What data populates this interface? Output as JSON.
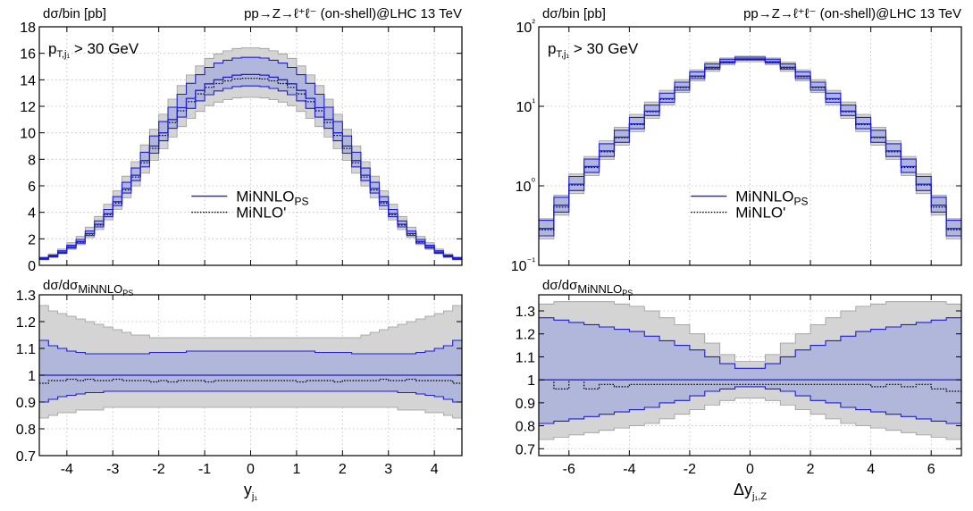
{
  "chart_data": [
    {
      "id": "left",
      "type": "step-histogram",
      "title": "pp→Z→ℓ⁺ℓ⁻ (on-shell)@LHC 13 TeV",
      "ylabel": "dσ/bin [pb]",
      "cut_label": "p_{T,j₁} > 30 GeV",
      "xlabel": "y_{j₁}",
      "xlim": [
        -4.6,
        4.6
      ],
      "ylim": [
        0,
        18
      ],
      "yscale": "linear",
      "grid": true,
      "legend_placement": "center-right",
      "xticks": [
        -4,
        -3,
        -2,
        -1,
        0,
        1,
        2,
        3,
        4
      ],
      "xtick_labels": [
        "-4",
        "-3",
        "-2",
        "-1",
        "0",
        "1",
        "2",
        "3",
        "4"
      ],
      "yticks": [
        0,
        2,
        4,
        6,
        8,
        10,
        12,
        14,
        16,
        18
      ],
      "ytick_labels": [
        "0",
        "2",
        "4",
        "6",
        "8",
        "10",
        "12",
        "14",
        "16",
        "18"
      ],
      "bin_edges": [
        -4.6,
        -4.4,
        -4.2,
        -4.0,
        -3.8,
        -3.6,
        -3.4,
        -3.2,
        -3.0,
        -2.8,
        -2.6,
        -2.4,
        -2.2,
        -2.0,
        -1.8,
        -1.6,
        -1.4,
        -1.2,
        -1.0,
        -0.8,
        -0.6,
        -0.4,
        -0.2,
        0.0,
        0.2,
        0.4,
        0.6,
        0.8,
        1.0,
        1.2,
        1.4,
        1.6,
        1.8,
        2.0,
        2.2,
        2.4,
        2.6,
        2.8,
        3.0,
        3.2,
        3.4,
        3.6,
        3.8,
        4.0,
        4.2,
        4.4,
        4.6
      ],
      "series": [
        {
          "name": "MiNNLO_PS",
          "color": "#1f1fd0",
          "style": "solid",
          "values": [
            0.5,
            0.7,
            1.0,
            1.4,
            1.8,
            2.4,
            3.1,
            3.9,
            4.8,
            5.8,
            6.8,
            7.9,
            9.0,
            10.0,
            11.0,
            11.9,
            12.6,
            13.2,
            13.7,
            14.0,
            14.2,
            14.35,
            14.4,
            14.4,
            14.35,
            14.2,
            14.0,
            13.7,
            13.2,
            12.6,
            11.9,
            11.0,
            10.0,
            9.0,
            7.9,
            6.8,
            5.8,
            4.8,
            3.9,
            3.1,
            2.4,
            1.8,
            1.4,
            1.0,
            0.7,
            0.5
          ]
        },
        {
          "name": "MiNLO'",
          "color": "#000000",
          "style": "dotted",
          "values": [
            0.49,
            0.69,
            0.98,
            1.37,
            1.76,
            2.36,
            3.04,
            3.82,
            4.7,
            5.68,
            6.66,
            7.74,
            8.82,
            9.8,
            10.78,
            11.66,
            12.35,
            12.94,
            13.43,
            13.72,
            13.92,
            14.06,
            14.11,
            14.11,
            14.06,
            13.92,
            13.72,
            13.43,
            12.94,
            12.35,
            11.66,
            10.78,
            9.8,
            8.82,
            7.74,
            6.66,
            5.68,
            4.7,
            3.82,
            3.04,
            2.36,
            1.76,
            1.37,
            0.98,
            0.69,
            0.49
          ]
        }
      ],
      "ratio": {
        "ylabel": "dσ/dσ_{MiNNLO_PS}",
        "ylim": [
          0.7,
          1.3
        ],
        "yticks": [
          0.7,
          0.8,
          0.9,
          1.0,
          1.1,
          1.2,
          1.3
        ],
        "ytick_labels": [
          "0.7",
          "0.8",
          "0.9",
          "1",
          "1.1",
          "1.2",
          "1.3"
        ],
        "minnlo_band_up": [
          1.13,
          1.11,
          1.1,
          1.09,
          1.085,
          1.08,
          1.08,
          1.08,
          1.08,
          1.08,
          1.08,
          1.08,
          1.085,
          1.085,
          1.085,
          1.085,
          1.09,
          1.09,
          1.09,
          1.09,
          1.09,
          1.09,
          1.09,
          1.09,
          1.09,
          1.09,
          1.09,
          1.09,
          1.09,
          1.09,
          1.085,
          1.085,
          1.085,
          1.085,
          1.08,
          1.08,
          1.08,
          1.08,
          1.08,
          1.08,
          1.08,
          1.085,
          1.09,
          1.1,
          1.11,
          1.13
        ],
        "minnlo_band_down": [
          0.9,
          0.91,
          0.92,
          0.925,
          0.93,
          0.935,
          0.935,
          0.94,
          0.94,
          0.94,
          0.94,
          0.94,
          0.94,
          0.94,
          0.94,
          0.94,
          0.94,
          0.94,
          0.94,
          0.94,
          0.94,
          0.94,
          0.94,
          0.94,
          0.94,
          0.94,
          0.94,
          0.94,
          0.94,
          0.94,
          0.94,
          0.94,
          0.94,
          0.94,
          0.94,
          0.94,
          0.94,
          0.94,
          0.94,
          0.935,
          0.935,
          0.93,
          0.925,
          0.92,
          0.91,
          0.9
        ],
        "minlo_central": [
          0.97,
          0.98,
          0.98,
          0.985,
          0.98,
          0.985,
          0.98,
          0.98,
          0.985,
          0.98,
          0.98,
          0.98,
          0.975,
          0.98,
          0.975,
          0.98,
          0.98,
          0.98,
          0.975,
          0.98,
          0.98,
          0.98,
          0.98,
          0.98,
          0.98,
          0.98,
          0.98,
          0.98,
          0.975,
          0.98,
          0.98,
          0.98,
          0.975,
          0.98,
          0.98,
          0.98,
          0.98,
          0.985,
          0.98,
          0.98,
          0.985,
          0.98,
          0.98,
          0.98,
          0.98,
          0.97
        ],
        "minlo_band_up": [
          1.26,
          1.24,
          1.23,
          1.22,
          1.21,
          1.2,
          1.19,
          1.18,
          1.17,
          1.16,
          1.15,
          1.15,
          1.14,
          1.14,
          1.14,
          1.14,
          1.14,
          1.14,
          1.14,
          1.14,
          1.14,
          1.14,
          1.14,
          1.14,
          1.14,
          1.14,
          1.14,
          1.14,
          1.14,
          1.14,
          1.14,
          1.14,
          1.14,
          1.14,
          1.14,
          1.15,
          1.16,
          1.17,
          1.18,
          1.19,
          1.2,
          1.21,
          1.22,
          1.23,
          1.24,
          1.26
        ],
        "minlo_band_down": [
          0.84,
          0.85,
          0.86,
          0.86,
          0.87,
          0.87,
          0.87,
          0.88,
          0.88,
          0.88,
          0.88,
          0.88,
          0.88,
          0.88,
          0.88,
          0.88,
          0.88,
          0.88,
          0.88,
          0.88,
          0.88,
          0.88,
          0.88,
          0.88,
          0.88,
          0.88,
          0.88,
          0.88,
          0.88,
          0.88,
          0.88,
          0.88,
          0.88,
          0.88,
          0.88,
          0.88,
          0.88,
          0.88,
          0.88,
          0.87,
          0.87,
          0.87,
          0.86,
          0.86,
          0.85,
          0.84
        ]
      }
    },
    {
      "id": "right",
      "type": "step-histogram",
      "title": "pp→Z→ℓ⁺ℓ⁻ (on-shell)@LHC 13 TeV",
      "ylabel": "dσ/bin [pb]",
      "cut_label": "p_{T,j₁} > 30 GeV",
      "xlabel": "Δy_{j₁,Z}",
      "xlim": [
        -7,
        7
      ],
      "ylim": [
        0.1,
        100
      ],
      "yscale": "log",
      "grid": true,
      "legend_placement": "center-right",
      "xticks": [
        -6,
        -4,
        -2,
        0,
        2,
        4,
        6
      ],
      "xtick_labels": [
        "-6",
        "-4",
        "-2",
        "0",
        "2",
        "4",
        "6"
      ],
      "yticks": [
        0.1,
        1,
        10,
        100
      ],
      "ytick_labels": [
        "10⁻¹",
        "10⁰",
        "10¹",
        "10²"
      ],
      "bin_edges": [
        -7.0,
        -6.5,
        -6.0,
        -5.5,
        -5.0,
        -4.5,
        -4.0,
        -3.5,
        -3.0,
        -2.5,
        -2.0,
        -1.5,
        -1.0,
        -0.5,
        0.0,
        0.5,
        1.0,
        1.5,
        2.0,
        2.5,
        3.0,
        3.5,
        4.0,
        4.5,
        5.0,
        5.5,
        6.0,
        6.5,
        7.0
      ],
      "series": [
        {
          "name": "MiNNLO_PS",
          "color": "#1f1fd0",
          "style": "solid",
          "values": [
            0.29,
            0.57,
            1.05,
            1.75,
            2.75,
            4.1,
            6.0,
            8.7,
            12.5,
            17.5,
            24.0,
            31.0,
            36.5,
            39.5,
            39.5,
            36.5,
            31.0,
            24.0,
            17.5,
            12.5,
            8.7,
            6.0,
            4.1,
            2.75,
            1.75,
            1.05,
            0.57,
            0.29
          ]
        },
        {
          "name": "MiNLO'",
          "color": "#000000",
          "style": "dotted",
          "values": [
            0.28,
            0.54,
            1.02,
            1.7,
            2.68,
            4.02,
            5.88,
            8.53,
            12.25,
            17.15,
            23.52,
            30.38,
            35.77,
            38.71,
            38.71,
            35.77,
            30.38,
            23.52,
            17.15,
            12.25,
            8.53,
            5.88,
            4.02,
            2.68,
            1.7,
            1.02,
            0.54,
            0.28
          ]
        }
      ],
      "ratio": {
        "ylabel": "dσ/dσ_{MiNNLO_PS}",
        "ylim": [
          0.67,
          1.37
        ],
        "yticks": [
          0.7,
          0.8,
          0.9,
          1.0,
          1.1,
          1.2,
          1.3
        ],
        "ytick_labels": [
          "0.7",
          "0.8",
          "0.9",
          "1",
          "1.1",
          "1.2",
          "1.3"
        ],
        "minnlo_band_up": [
          1.27,
          1.26,
          1.25,
          1.24,
          1.23,
          1.22,
          1.21,
          1.19,
          1.17,
          1.15,
          1.13,
          1.1,
          1.07,
          1.05,
          1.05,
          1.07,
          1.1,
          1.13,
          1.15,
          1.17,
          1.19,
          1.21,
          1.22,
          1.23,
          1.24,
          1.25,
          1.26,
          1.27
        ],
        "minnlo_band_down": [
          0.81,
          0.82,
          0.83,
          0.84,
          0.85,
          0.86,
          0.87,
          0.88,
          0.9,
          0.91,
          0.93,
          0.95,
          0.96,
          0.97,
          0.97,
          0.96,
          0.95,
          0.93,
          0.91,
          0.9,
          0.88,
          0.87,
          0.86,
          0.85,
          0.84,
          0.83,
          0.82,
          0.81
        ],
        "minlo_central": [
          1.0,
          0.96,
          1.0,
          0.96,
          0.98,
          0.97,
          0.98,
          0.98,
          0.98,
          0.98,
          0.98,
          0.98,
          0.98,
          0.98,
          0.98,
          0.98,
          0.98,
          0.98,
          0.98,
          0.98,
          0.98,
          0.98,
          0.97,
          0.98,
          0.97,
          0.98,
          0.96,
          0.95
        ],
        "minlo_band_up": [
          1.33,
          1.34,
          1.34,
          1.34,
          1.34,
          1.33,
          1.32,
          1.3,
          1.27,
          1.24,
          1.2,
          1.16,
          1.11,
          1.08,
          1.08,
          1.11,
          1.16,
          1.2,
          1.24,
          1.27,
          1.3,
          1.32,
          1.33,
          1.34,
          1.34,
          1.34,
          1.34,
          1.33
        ],
        "minlo_band_down": [
          0.74,
          0.75,
          0.76,
          0.77,
          0.78,
          0.79,
          0.8,
          0.81,
          0.83,
          0.85,
          0.87,
          0.89,
          0.91,
          0.92,
          0.92,
          0.91,
          0.89,
          0.87,
          0.85,
          0.83,
          0.81,
          0.8,
          0.79,
          0.78,
          0.77,
          0.76,
          0.75,
          0.74
        ]
      }
    }
  ]
}
